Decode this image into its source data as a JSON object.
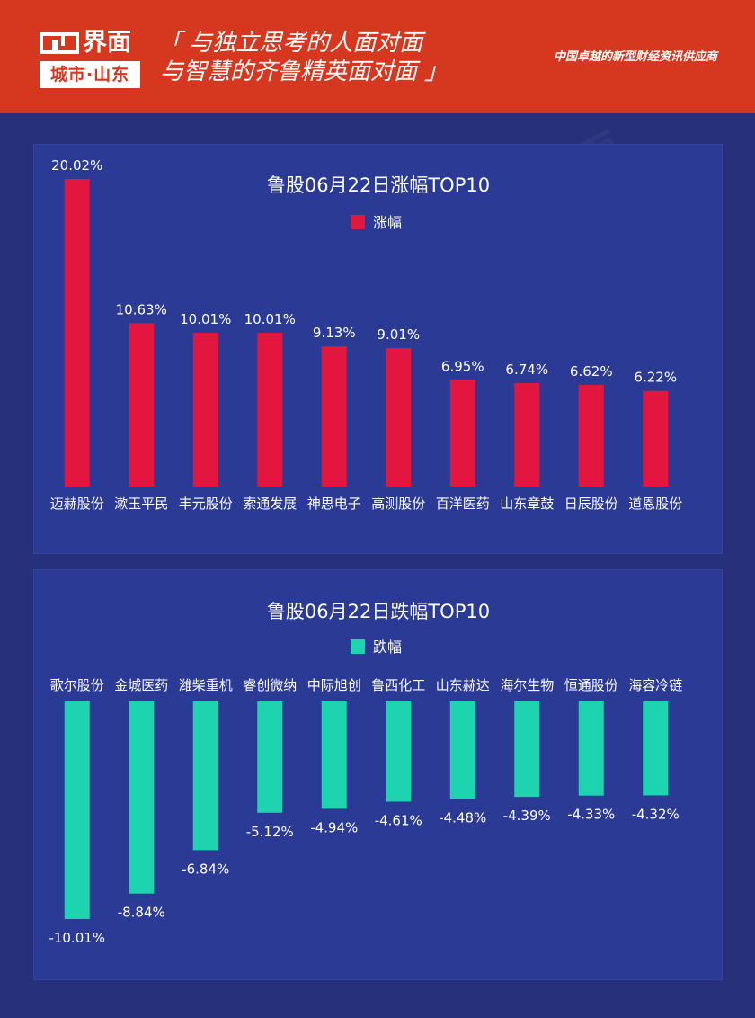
{
  "header": {
    "logo_main": "界面",
    "logo_sub": "城市·山东",
    "slogan_line1": "「 与独立思考的人面对面",
    "slogan_line2": "与智慧的齐鲁精英面对面 」",
    "tagline": "中国卓越的新型财经资讯供应商"
  },
  "colors": {
    "header_bg": "#d6371f",
    "page_bg": "#27307a",
    "panel_bg": "#2b3a94",
    "gain": "#e3163f",
    "loss": "#1ed4b0"
  },
  "chart_data": [
    {
      "type": "bar",
      "title": "鲁股06月22日涨幅TOP10",
      "legend": "top",
      "series": [
        {
          "name": "涨幅",
          "color": "#e3163f",
          "values": [
            20.02,
            10.63,
            10.01,
            10.01,
            9.13,
            9.01,
            6.95,
            6.74,
            6.62,
            6.22
          ]
        }
      ],
      "categories": [
        "迈赫股份",
        "漱玉平民",
        "丰元股份",
        "索通发展",
        "神思电子",
        "高测股份",
        "百洋医药",
        "山东章鼓",
        "日辰股份",
        "道恩股份"
      ],
      "data_labels": [
        "20.02%",
        "10.63%",
        "10.01%",
        "10.01%",
        "9.13%",
        "9.01%",
        "6.95%",
        "6.74%",
        "6.62%",
        "6.22%"
      ],
      "ylim": [
        0,
        20.02
      ],
      "grid": false
    },
    {
      "type": "bar",
      "title": "鲁股06月22日跌幅TOP10",
      "legend": "top",
      "series": [
        {
          "name": "跌幅",
          "color": "#1ed4b0",
          "values": [
            -10.01,
            -8.84,
            -6.84,
            -5.12,
            -4.94,
            -4.61,
            -4.48,
            -4.39,
            -4.33,
            -4.32
          ]
        }
      ],
      "categories": [
        "歌尔股份",
        "金城医药",
        "潍柴重机",
        "睿创微纳",
        "中际旭创",
        "鲁西化工",
        "山东赫达",
        "海尔生物",
        "恒通股份",
        "海容冷链"
      ],
      "data_labels": [
        "-10.01%",
        "-8.84%",
        "-6.84%",
        "-5.12%",
        "-4.94%",
        "-4.61%",
        "-4.48%",
        "-4.39%",
        "-4.33%",
        "-4.32%"
      ],
      "ylim": [
        -10.01,
        0
      ],
      "grid": false
    }
  ]
}
